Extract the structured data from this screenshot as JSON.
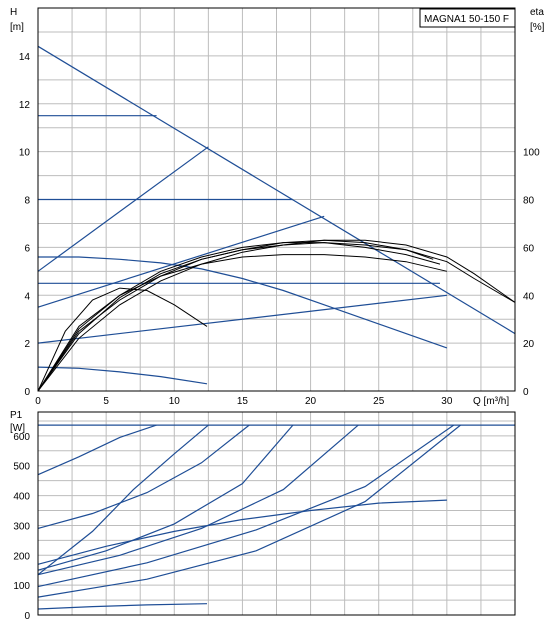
{
  "chart_data": [
    {
      "type": "line",
      "subplot": "head",
      "title": "MAGNA1 50-150 F",
      "xlabel": "Q [m³/h]",
      "ylabel": "H",
      "ylabel_unit": "[m]",
      "y2label": "eta",
      "y2label_unit": "[%]",
      "xlim": [
        0,
        35
      ],
      "ylim": [
        0,
        16
      ],
      "y2lim": [
        0,
        160
      ],
      "xticks": [
        "0",
        "5",
        "10",
        "15",
        "20",
        "25",
        "30"
      ],
      "yticks": [
        "0",
        "2",
        "4",
        "6",
        "8",
        "10",
        "12",
        "14"
      ],
      "y2ticks": [
        "0",
        "20",
        "40",
        "60",
        "80",
        "100"
      ],
      "grid": true,
      "head_curves": [
        {
          "x": [
            0,
            35
          ],
          "y": [
            14.4,
            2.4
          ]
        },
        {
          "x": [
            0,
            8.7
          ],
          "y": [
            11.5,
            11.5
          ]
        },
        {
          "x": [
            0,
            18.7
          ],
          "y": [
            8.0,
            8.0
          ]
        },
        {
          "x": [
            0,
            29.5
          ],
          "y": [
            4.5,
            4.5
          ]
        },
        {
          "x": [
            0,
            12.5
          ],
          "y": [
            5.0,
            10.2
          ]
        },
        {
          "x": [
            0,
            21
          ],
          "y": [
            3.5,
            7.3
          ]
        },
        {
          "x": [
            0,
            30
          ],
          "y": [
            2.0,
            4.0
          ]
        },
        {
          "x": [
            0,
            3,
            6,
            9,
            12,
            15,
            18,
            21,
            24,
            27,
            30
          ],
          "y": [
            5.6,
            5.6,
            5.5,
            5.35,
            5.1,
            4.7,
            4.2,
            3.6,
            3.0,
            2.4,
            1.8
          ]
        },
        {
          "x": [
            0,
            3,
            6,
            9,
            12.4
          ],
          "y": [
            1.0,
            0.95,
            0.8,
            0.6,
            0.3
          ]
        }
      ],
      "efficiency_curves": [
        {
          "x": [
            0,
            2,
            4,
            6,
            8,
            10,
            12.4
          ],
          "y": [
            0,
            25,
            38,
            43,
            42,
            36,
            27
          ]
        },
        {
          "x": [
            0,
            3,
            6,
            9,
            12,
            15,
            18,
            21,
            24,
            27,
            30
          ],
          "y": [
            0,
            27,
            40,
            48,
            53,
            56,
            57,
            57,
            56,
            54,
            50
          ]
        },
        {
          "x": [
            0,
            3,
            6,
            9,
            12,
            15,
            18,
            21,
            24,
            27,
            30,
            32,
            35
          ],
          "y": [
            0,
            25,
            38,
            48,
            55,
            59,
            62,
            63,
            62,
            59,
            54,
            47,
            37
          ]
        },
        {
          "x": [
            0,
            3,
            6,
            9,
            12,
            15,
            18,
            21,
            24,
            27,
            30,
            32,
            35
          ],
          "y": [
            0,
            22,
            36,
            46,
            53,
            58,
            61,
            63,
            63,
            61,
            56,
            49,
            37
          ]
        },
        {
          "x": [
            0,
            3,
            6,
            9,
            12,
            15,
            18,
            21,
            24,
            27,
            29.5
          ],
          "y": [
            0,
            26,
            40,
            50,
            56,
            60,
            62,
            62,
            60,
            57,
            53
          ]
        },
        {
          "x": [
            0,
            3,
            6,
            9,
            12,
            15,
            18,
            21,
            24,
            27,
            29
          ],
          "y": [
            0,
            24,
            39,
            49,
            55,
            59,
            61,
            62,
            61,
            59,
            55
          ]
        }
      ]
    },
    {
      "type": "line",
      "subplot": "power",
      "ylabel": "P1",
      "ylabel_unit": "[W]",
      "xlim": [
        0,
        35
      ],
      "ylim": [
        0,
        680
      ],
      "yticks": [
        "0",
        "100",
        "200",
        "300",
        "400",
        "500",
        "600"
      ],
      "grid": true,
      "power_curves": [
        {
          "x": [
            0,
            35
          ],
          "y": [
            636,
            636
          ]
        },
        {
          "x": [
            0,
            3,
            6,
            8.7
          ],
          "y": [
            470,
            530,
            595,
            636
          ]
        },
        {
          "x": [
            0,
            4,
            8,
            12,
            15.5
          ],
          "y": [
            290,
            340,
            410,
            510,
            636
          ]
        },
        {
          "x": [
            0,
            5,
            10,
            15,
            18.7
          ],
          "y": [
            150,
            215,
            305,
            440,
            636
          ]
        },
        {
          "x": [
            0,
            6,
            12,
            18,
            23.5
          ],
          "y": [
            135,
            200,
            290,
            420,
            636
          ]
        },
        {
          "x": [
            0,
            8,
            16,
            24,
            30.5
          ],
          "y": [
            95,
            175,
            285,
            430,
            636
          ]
        },
        {
          "x": [
            0,
            8,
            16,
            24,
            31
          ],
          "y": [
            60,
            120,
            215,
            380,
            636
          ]
        },
        {
          "x": [
            0,
            4,
            7,
            10,
            12.5
          ],
          "y": [
            135,
            280,
            420,
            540,
            636
          ]
        },
        {
          "x": [
            0,
            5,
            10,
            15,
            20,
            25,
            30
          ],
          "y": [
            170,
            230,
            280,
            320,
            350,
            375,
            385
          ]
        },
        {
          "x": [
            0,
            4,
            8,
            12.4
          ],
          "y": [
            20,
            28,
            34,
            38
          ]
        }
      ]
    }
  ]
}
